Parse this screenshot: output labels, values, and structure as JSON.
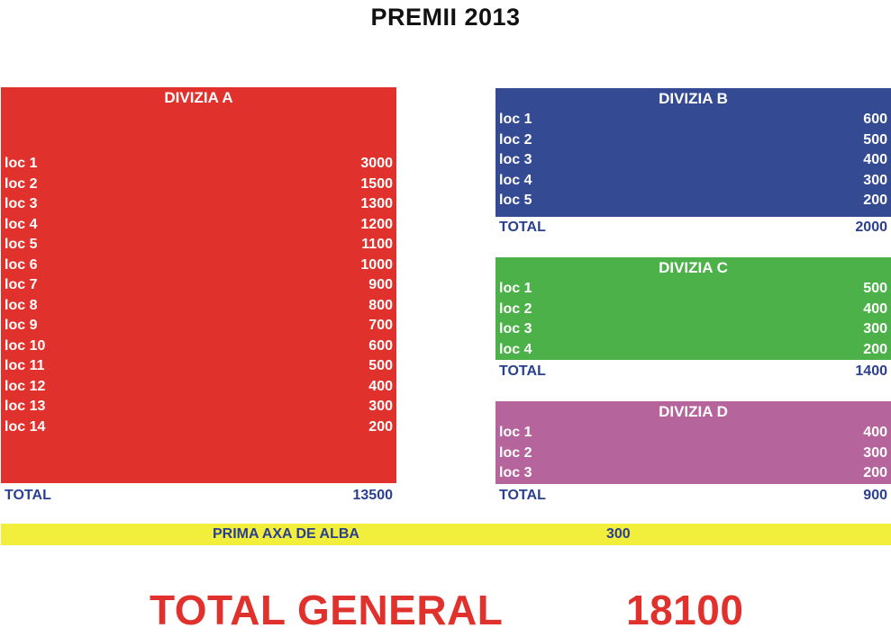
{
  "title": "PREMII 2013",
  "colors": {
    "division_a": "#e0312c",
    "division_b": "#344a93",
    "division_c": "#4db14a",
    "division_d": "#b5659c",
    "prima_band": "#f2ee3c",
    "total_text": "#2a3f8f",
    "grand_total_text": "#e0312c"
  },
  "divisions": {
    "a": {
      "name": "DIVIZIA A",
      "rows": [
        {
          "label": "loc 1",
          "value": "3000"
        },
        {
          "label": "loc 2",
          "value": "1500"
        },
        {
          "label": "loc 3",
          "value": "1300"
        },
        {
          "label": "loc 4",
          "value": "1200"
        },
        {
          "label": "loc 5",
          "value": "1100"
        },
        {
          "label": "loc 6",
          "value": "1000"
        },
        {
          "label": "loc 7",
          "value": "900"
        },
        {
          "label": "loc 8",
          "value": "800"
        },
        {
          "label": "loc 9",
          "value": "700"
        },
        {
          "label": "loc 10",
          "value": "600"
        },
        {
          "label": "loc 11",
          "value": "500"
        },
        {
          "label": "loc 12",
          "value": "400"
        },
        {
          "label": "loc 13",
          "value": "300"
        },
        {
          "label": "loc 14",
          "value": "200"
        }
      ],
      "total_label": "TOTAL",
      "total_value": "13500"
    },
    "b": {
      "name": "DIVIZIA B",
      "rows": [
        {
          "label": "loc 1",
          "value": "600"
        },
        {
          "label": "loc 2",
          "value": "500"
        },
        {
          "label": "loc 3",
          "value": "400"
        },
        {
          "label": "loc 4",
          "value": "300"
        },
        {
          "label": "loc 5",
          "value": "200"
        }
      ],
      "total_label": "TOTAL",
      "total_value": "2000"
    },
    "c": {
      "name": "DIVIZIA C",
      "rows": [
        {
          "label": "loc 1",
          "value": "500"
        },
        {
          "label": "loc 2",
          "value": "400"
        },
        {
          "label": "loc 3",
          "value": "300"
        },
        {
          "label": "loc 4",
          "value": "200"
        }
      ],
      "total_label": "TOTAL",
      "total_value": "1400"
    },
    "d": {
      "name": "DIVIZIA D",
      "rows": [
        {
          "label": "loc 1",
          "value": "400"
        },
        {
          "label": "loc 2",
          "value": "300"
        },
        {
          "label": "loc 3",
          "value": "200"
        }
      ],
      "total_label": "TOTAL",
      "total_value": "900"
    }
  },
  "prima": {
    "label": "PRIMA AXA DE ALBA",
    "value": "300"
  },
  "grand_total": {
    "label": "TOTAL GENERAL",
    "value": "18100"
  }
}
